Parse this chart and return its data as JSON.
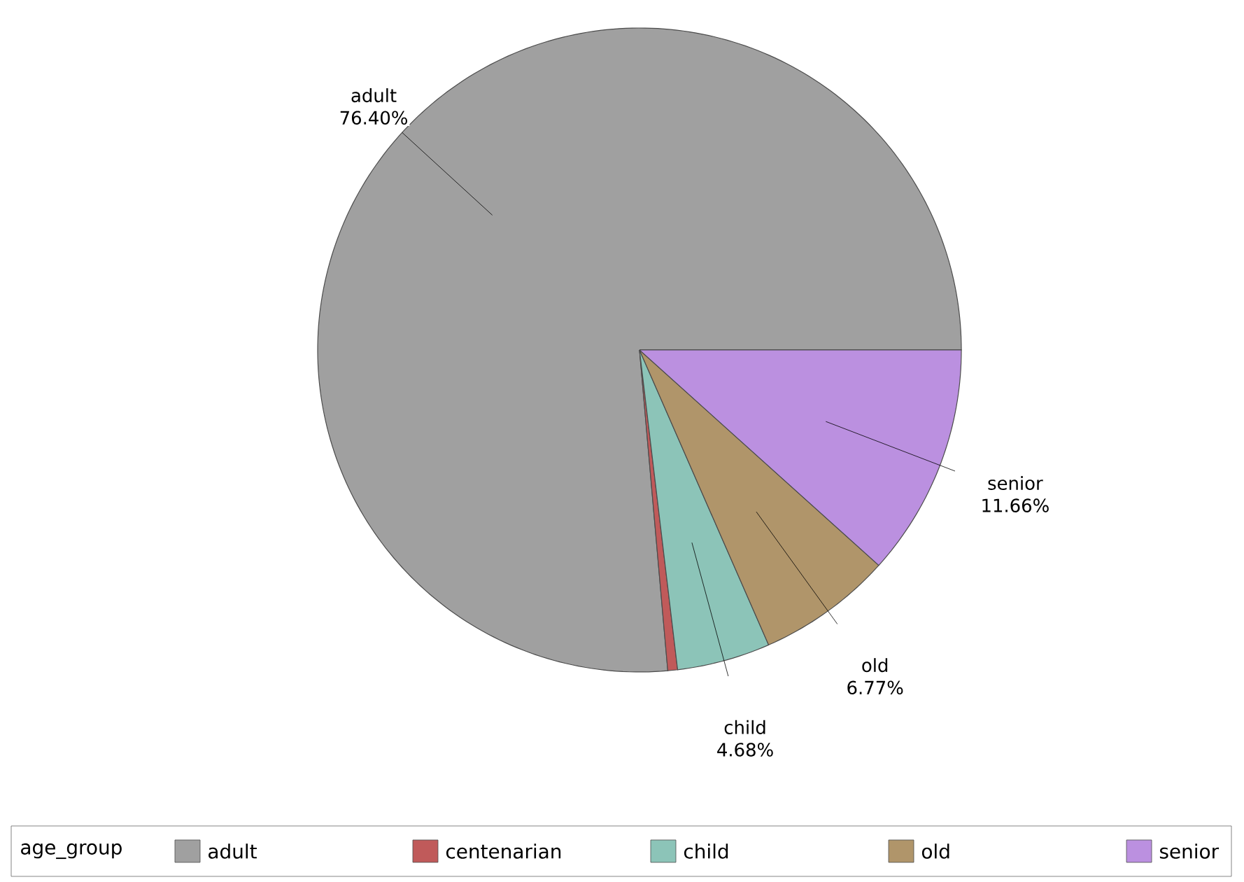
{
  "chart_data": {
    "type": "pie",
    "legend_title": "age_group",
    "legend": "bottom",
    "categories": [
      "adult",
      "centenarian",
      "child",
      "old",
      "senior"
    ],
    "values": [
      76.4,
      0.49,
      4.68,
      6.77,
      11.66
    ],
    "value_labels": [
      "76.40%",
      null,
      "4.68%",
      "6.77%",
      "11.66%"
    ],
    "colors": [
      "#a0a0a0",
      "#c05a5a",
      "#8cc4b8",
      "#b0956a",
      "#bb90e0"
    ]
  }
}
